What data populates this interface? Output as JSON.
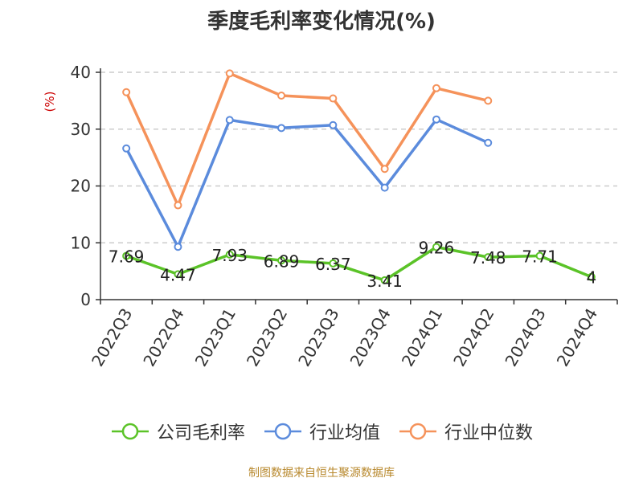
{
  "chart_data": {
    "type": "line",
    "title": "季度毛利率变化情况(%)",
    "ylabel": "(%)",
    "xlabel": "",
    "categories": [
      "2022Q3",
      "2022Q4",
      "2023Q1",
      "2023Q2",
      "2023Q3",
      "2023Q4",
      "2024Q1",
      "2024Q2",
      "2024Q3",
      "2024Q4"
    ],
    "ylim": [
      0,
      40
    ],
    "yticks": [
      0,
      10,
      20,
      30,
      40
    ],
    "grid": "horizontal-dashed",
    "legend_position": "bottom",
    "series": [
      {
        "name": "公司毛利率",
        "color": "#5bc328",
        "values": [
          7.69,
          4.47,
          7.93,
          6.89,
          6.37,
          3.41,
          9.26,
          7.48,
          7.71,
          4
        ],
        "data_labels": [
          "7.69",
          "4.47",
          "7.93",
          "6.89",
          "6.37",
          "3.41",
          "9.26",
          "7.48",
          "7.71",
          "4"
        ]
      },
      {
        "name": "行业均值",
        "color": "#5b8bdc",
        "values": [
          26.6,
          9.3,
          31.6,
          30.2,
          30.7,
          19.7,
          31.7,
          27.6,
          null,
          null
        ]
      },
      {
        "name": "行业中位数",
        "color": "#f5925a",
        "values": [
          36.5,
          16.6,
          39.8,
          35.9,
          35.4,
          23.0,
          37.2,
          35.0,
          null,
          null
        ]
      }
    ],
    "source_note": "制图数据来自恒生聚源数据库"
  },
  "colors": {
    "axis": "#333333",
    "grid": "#cccccc",
    "ylabel": "#cc0000",
    "source": "#b8892e"
  }
}
